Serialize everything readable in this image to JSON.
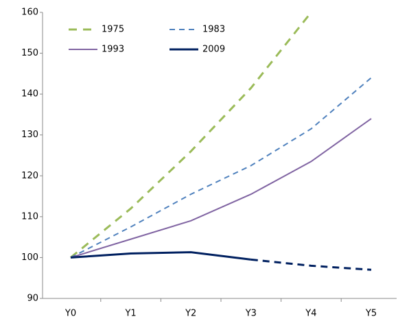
{
  "chart_data": {
    "type": "line",
    "categories": [
      "Y0",
      "Y1",
      "Y2",
      "Y3",
      "Y4",
      "Y5"
    ],
    "series": [
      {
        "name": "1975",
        "color": "#9bbb59",
        "width": 3,
        "dash": "12 9",
        "values": [
          100,
          112,
          126,
          141.5,
          160,
          null
        ]
      },
      {
        "name": "1983",
        "color": "#4f81bd",
        "width": 2,
        "dash": "8 6",
        "values": [
          100,
          107.5,
          115.5,
          122.5,
          131.5,
          144
        ]
      },
      {
        "name": "1993",
        "color": "#8064a2",
        "width": 2,
        "dash": null,
        "values": [
          100,
          104.5,
          109,
          115.5,
          123.5,
          134
        ]
      },
      {
        "name": "2009",
        "color": "#002060",
        "width": 3,
        "dash": null,
        "dash_from_index": 3,
        "values": [
          100,
          101,
          101.3,
          99.5,
          98,
          97
        ]
      }
    ],
    "ylim": [
      90,
      160
    ],
    "yticks": [
      90,
      100,
      110,
      120,
      130,
      140,
      150,
      160
    ]
  }
}
